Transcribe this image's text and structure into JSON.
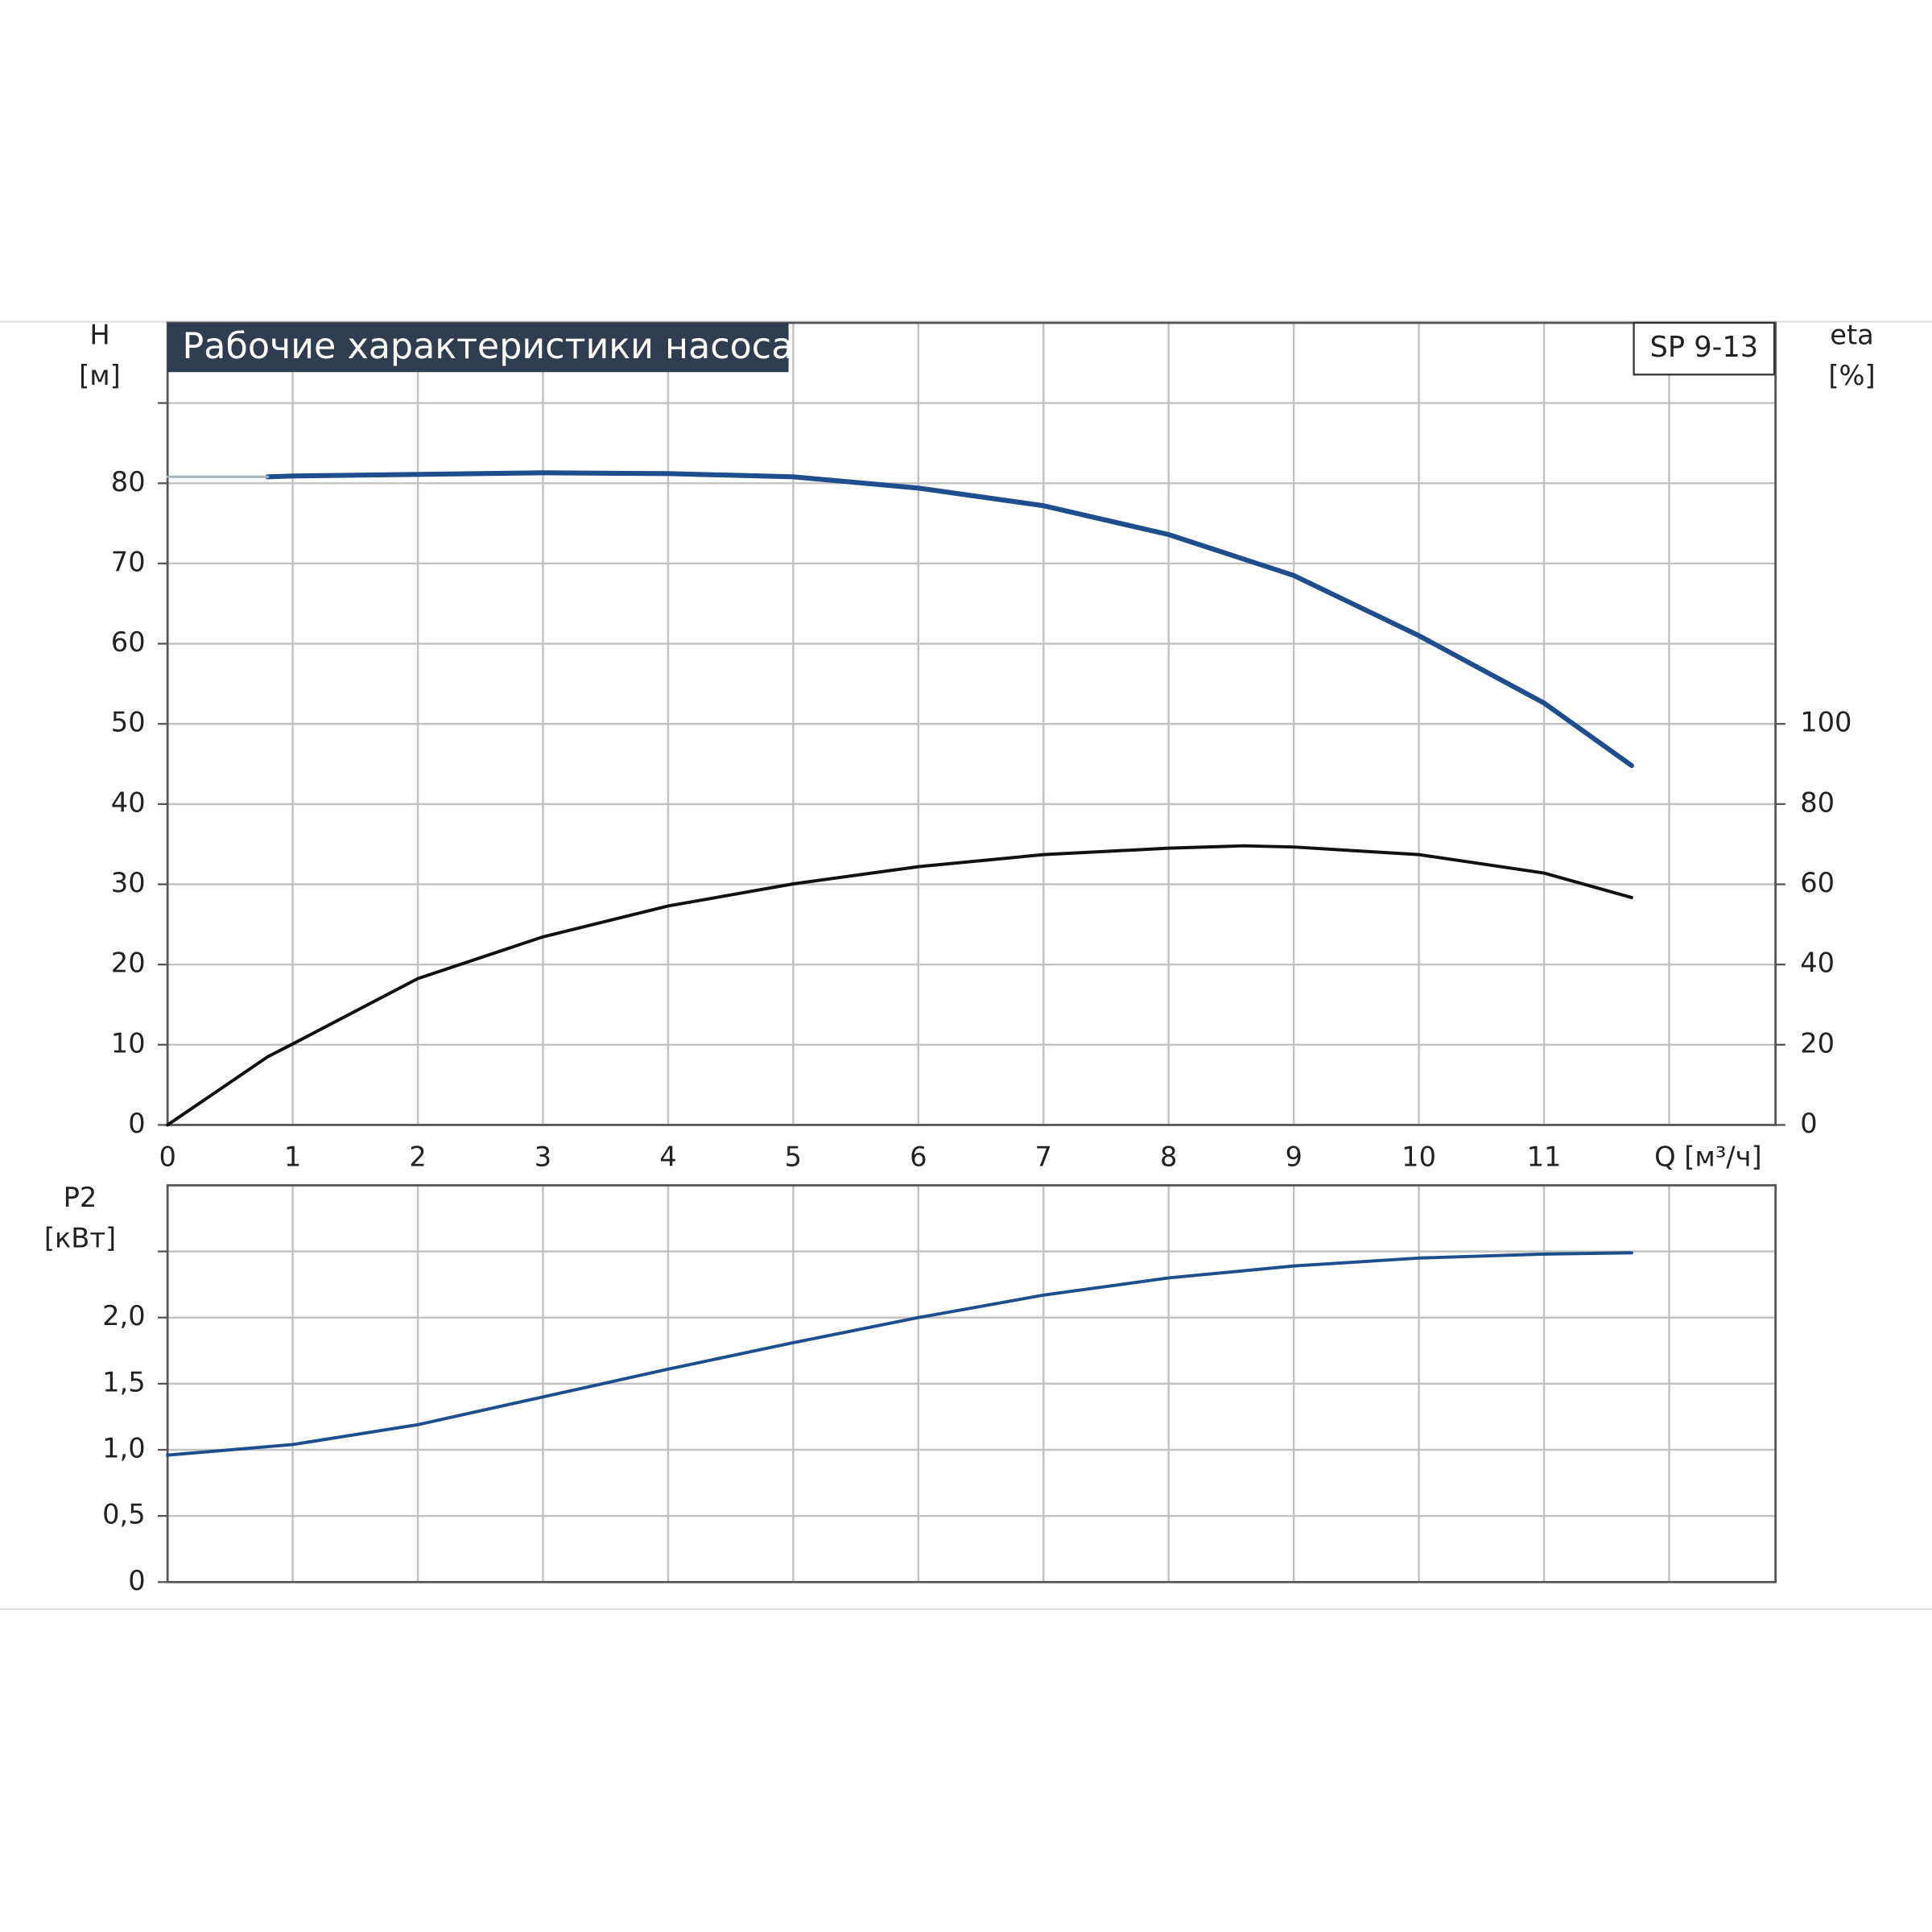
{
  "chart_data": [
    {
      "type": "line",
      "title": "Рабочие характеристики насоса",
      "model": "SP 9-13",
      "y_label": "H",
      "y_unit": "[м]",
      "y2_label": "eta",
      "y2_unit": "[%]",
      "xlim": [
        0,
        12.85
      ],
      "xticks": [
        0,
        1,
        2,
        3,
        4,
        5,
        6,
        7,
        8,
        9,
        10,
        11,
        {
          "value": 12,
          "label": "Q [м³/ч]"
        }
      ],
      "xtick_labels": true,
      "ylim": [
        0,
        100
      ],
      "yticks": [
        0,
        10,
        20,
        30,
        40,
        50,
        60,
        70,
        80,
        {
          "value": 90,
          "label": null
        }
      ],
      "y2lim": [
        0,
        200
      ],
      "y2ticks": [
        0,
        20,
        40,
        60,
        80,
        100
      ],
      "grid": true,
      "series": [
        {
          "color": "#1f4e8c",
          "width": 4,
          "x": [
            0.8,
            1,
            2,
            3,
            4,
            5,
            6,
            7,
            8,
            9,
            10,
            11,
            11.7
          ],
          "values": [
            80.8,
            80.9,
            81.1,
            81.3,
            81.2,
            80.8,
            79.4,
            77.2,
            73.6,
            68.5,
            61,
            52.6,
            44.8
          ]
        },
        {
          "color": "#aab4c0",
          "width": 2,
          "x": [
            0,
            0.8
          ],
          "values": [
            80.8,
            80.8
          ]
        },
        {
          "color": "#111111",
          "width": 2.6,
          "axis": "y2",
          "x": [
            0,
            0.8,
            1,
            2,
            3,
            4,
            5,
            6,
            7,
            8,
            8.6,
            9,
            10,
            11,
            11.7
          ],
          "values": [
            0,
            17,
            20.2,
            36.5,
            46.9,
            54.6,
            60.1,
            64.4,
            67.4,
            69,
            69.6,
            69.3,
            67.4,
            62.8,
            56.7
          ]
        }
      ]
    },
    {
      "type": "line",
      "y_label": "P2",
      "y_unit": "[кВт]",
      "xlim": [
        0,
        12.85
      ],
      "xticks": [
        0,
        1,
        2,
        3,
        4,
        5,
        6,
        7,
        8,
        9,
        10,
        11,
        12
      ],
      "xtick_labels": false,
      "ylim": [
        0,
        3
      ],
      "yticks": [
        0,
        {
          "value": 0.5,
          "label": "0,5"
        },
        {
          "value": 1,
          "label": "1,0"
        },
        {
          "value": 1.5,
          "label": "1,5"
        },
        {
          "value": 2,
          "label": "2,0"
        },
        {
          "value": 2.5,
          "label": null
        }
      ],
      "grid": true,
      "series": [
        {
          "color": "#1f4e8c",
          "width": 2.6,
          "x": [
            0,
            1,
            2,
            3,
            4,
            5,
            6,
            7,
            8,
            9,
            10,
            11,
            11.7
          ],
          "values": [
            0.96,
            1.04,
            1.19,
            1.4,
            1.61,
            1.81,
            2,
            2.17,
            2.3,
            2.39,
            2.45,
            2.48,
            2.49
          ]
        }
      ]
    }
  ]
}
